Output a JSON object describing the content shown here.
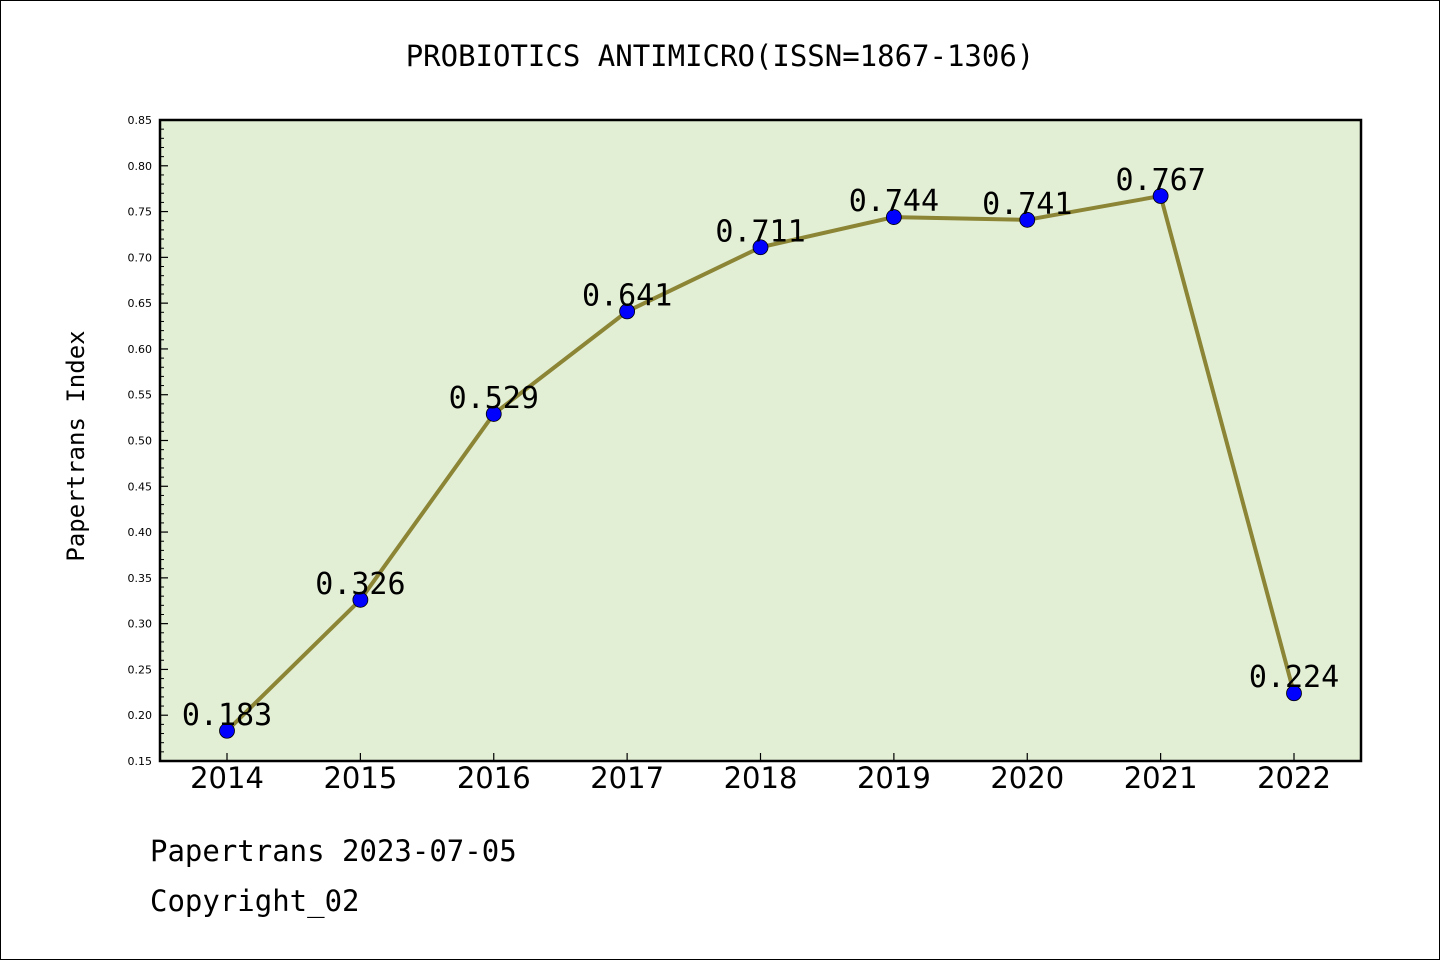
{
  "chart_data": {
    "type": "line",
    "title": "PROBIOTICS ANTIMICRO(ISSN=1867-1306)",
    "xlabel": "",
    "ylabel": "Papertrans Index",
    "categories": [
      "2014",
      "2015",
      "2016",
      "2017",
      "2018",
      "2019",
      "2020",
      "2021",
      "2022"
    ],
    "series": [
      {
        "values": [
          0.183,
          0.326,
          0.529,
          0.641,
          0.711,
          0.744,
          0.741,
          0.767,
          0.224
        ]
      }
    ],
    "data_labels": [
      "0.183",
      "0.326",
      "0.529",
      "0.641",
      "0.711",
      "0.744",
      "0.741",
      "0.767",
      "0.224"
    ],
    "ylim": [
      0.15,
      0.85
    ],
    "yticks": [
      "0.15",
      "0.20",
      "0.25",
      "0.30",
      "0.35",
      "0.40",
      "0.45",
      "0.50",
      "0.55",
      "0.60",
      "0.65",
      "0.70",
      "0.75",
      "0.80",
      "0.85"
    ],
    "grid": false,
    "colors": {
      "plot_background": "#e2efd5",
      "line": "#8b8535",
      "marker": "#0000ff"
    }
  },
  "footer": {
    "line1": "Papertrans 2023-07-05",
    "line2": "Copyright_02"
  }
}
